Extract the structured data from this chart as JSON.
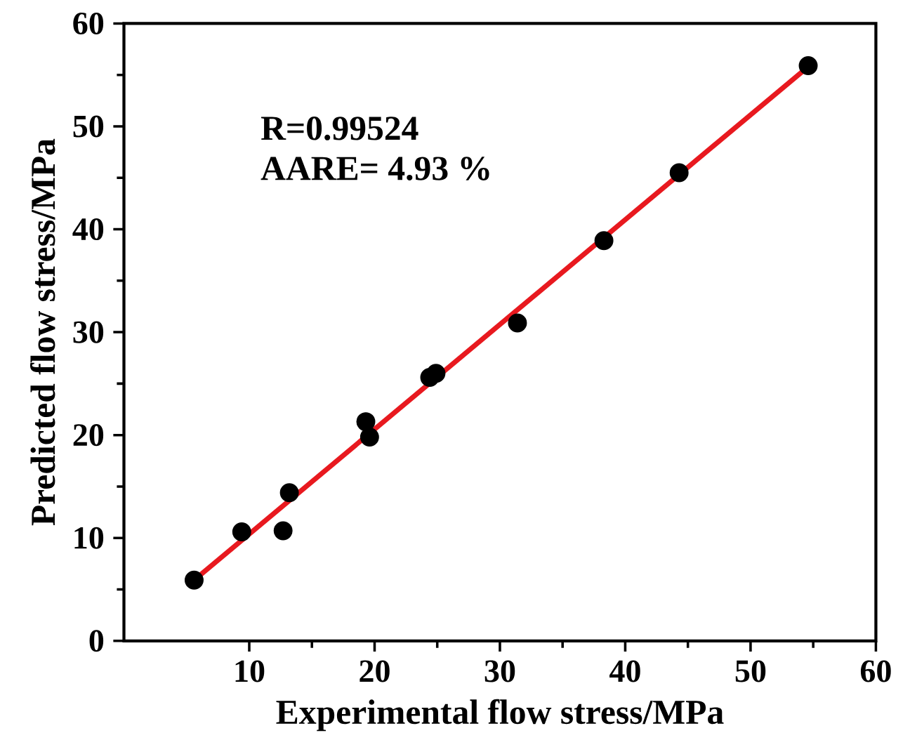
{
  "chart_data": {
    "type": "scatter",
    "xlabel": "Experimental flow stress/MPa",
    "ylabel": "Predicted flow stress/MPa",
    "xlim": [
      0,
      60
    ],
    "ylim": [
      0,
      60
    ],
    "xticks": [
      10,
      20,
      30,
      40,
      50,
      60
    ],
    "yticks": [
      0,
      10,
      20,
      30,
      40,
      50,
      60
    ],
    "x": [
      5.6,
      9.4,
      12.7,
      13.2,
      19.3,
      19.6,
      24.4,
      24.9,
      31.4,
      38.3,
      44.3,
      54.6
    ],
    "series": [
      {
        "color": "#000000",
        "marker": "circle",
        "values": [
          5.9,
          10.6,
          10.7,
          14.4,
          21.3,
          19.8,
          25.6,
          26.0,
          30.9,
          38.9,
          45.5,
          55.9
        ]
      },
      {
        "type": "line",
        "marker": "none",
        "color": "#e8191f",
        "x": [
          5.6,
          54.6
        ],
        "values": [
          5.9,
          55.8
        ]
      }
    ],
    "annotations": [
      "R=0.99524",
      "AARE= 4.93 %"
    ]
  }
}
